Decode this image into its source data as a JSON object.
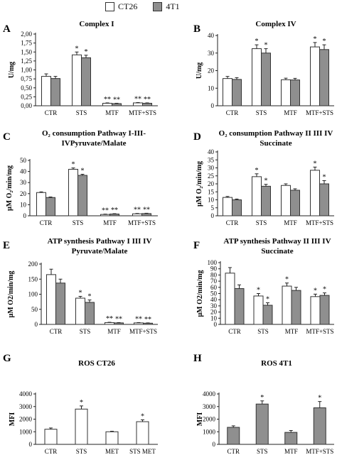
{
  "legend": [
    {
      "label": "CT26",
      "color": "#ffffff"
    },
    {
      "label": "4T1",
      "color": "#8f8f8f"
    }
  ],
  "chart_data": [
    {
      "id": "A",
      "type": "bar",
      "title_lines": [
        "Complex I"
      ],
      "ylabel": "U/mg",
      "categories": [
        "CTR",
        "STS",
        "MTF",
        "MTF+STS"
      ],
      "ylim": [
        0,
        2.0
      ],
      "yticks": [
        "0,00",
        "0,25",
        "0,50",
        "0,75",
        "1,00",
        "1,25",
        "1,50",
        "1,75",
        "2,00"
      ],
      "series": [
        {
          "name": "CT26",
          "color": "#ffffff",
          "values": [
            0.82,
            1.42,
            0.07,
            0.08
          ],
          "errors": [
            0.07,
            0.08,
            0.01,
            0.01
          ]
        },
        {
          "name": "4T1",
          "color": "#8f8f8f",
          "values": [
            0.76,
            1.34,
            0.06,
            0.07
          ],
          "errors": [
            0.06,
            0.07,
            0.01,
            0.01
          ]
        }
      ],
      "annotations": [
        [
          "",
          ""
        ],
        [
          "*",
          "*"
        ],
        [
          "**",
          "**"
        ],
        [
          "**",
          "**"
        ]
      ]
    },
    {
      "id": "B",
      "type": "bar",
      "title_lines": [
        "Complex IV"
      ],
      "ylabel": "U/mg",
      "categories": [
        "CTR",
        "STS",
        "MTF",
        "MTF+STS"
      ],
      "ylim": [
        0,
        40
      ],
      "yticks": [
        "0",
        "10",
        "20",
        "30",
        "40"
      ],
      "series": [
        {
          "name": "CT26",
          "color": "#ffffff",
          "values": [
            15.5,
            32.5,
            14.8,
            33.5
          ],
          "errors": [
            1.2,
            2.2,
            0.9,
            2.5
          ]
        },
        {
          "name": "4T1",
          "color": "#8f8f8f",
          "values": [
            15.0,
            30.0,
            14.7,
            32.0
          ],
          "errors": [
            1.0,
            2.5,
            0.9,
            2.7
          ]
        }
      ],
      "annotations": [
        [
          "",
          ""
        ],
        [
          "*",
          "*"
        ],
        [
          "",
          ""
        ],
        [
          "*",
          "*"
        ]
      ]
    },
    {
      "id": "C",
      "type": "bar",
      "title_lines": [
        "O₂ consumption Pathway I-III-",
        "IVPyruvate/Malate"
      ],
      "ylabel": "μM O₂/min/mg",
      "categories": [
        "CTR",
        "STS",
        "MTF",
        "MTF+STS"
      ],
      "ylim": [
        0,
        50
      ],
      "yticks": [
        "0",
        "10",
        "20",
        "30",
        "40",
        "50"
      ],
      "series": [
        {
          "name": "CT26",
          "color": "#ffffff",
          "values": [
            21,
            42,
            1.2,
            1.8
          ],
          "errors": [
            0.6,
            1.2,
            0.3,
            0.3
          ]
        },
        {
          "name": "4T1",
          "color": "#8f8f8f",
          "values": [
            16.5,
            36.5,
            1.6,
            2.0
          ],
          "errors": [
            0.5,
            1.0,
            0.3,
            0.3
          ]
        }
      ],
      "annotations": [
        [
          "",
          ""
        ],
        [
          "*",
          "*"
        ],
        [
          "**",
          "**"
        ],
        [
          "**",
          "**"
        ]
      ]
    },
    {
      "id": "D",
      "type": "bar",
      "title_lines": [
        "O₂ consumption Pathway II III IV",
        "Succinate"
      ],
      "ylabel": "μM O₂/min/mg",
      "categories": [
        "CTR",
        "STS",
        "MTF",
        "MTF+STS"
      ],
      "ylim": [
        0,
        40
      ],
      "yticks": [
        "0",
        "5",
        "10",
        "15",
        "20",
        "25",
        "30",
        "35",
        "40"
      ],
      "series": [
        {
          "name": "CT26",
          "color": "#ffffff",
          "values": [
            11.5,
            24.5,
            19.0,
            28.5
          ],
          "errors": [
            0.6,
            1.8,
            1.0,
            2.0
          ]
        },
        {
          "name": "4T1",
          "color": "#8f8f8f",
          "values": [
            10.0,
            18.5,
            16.0,
            20.0
          ],
          "errors": [
            0.5,
            1.2,
            0.9,
            2.0
          ]
        }
      ],
      "annotations": [
        [
          "",
          ""
        ],
        [
          "*",
          "*"
        ],
        [
          "",
          ""
        ],
        [
          "*",
          "*"
        ]
      ]
    },
    {
      "id": "E",
      "type": "bar",
      "title_lines": [
        "ATP synthesis Pathway I III IV",
        "Pyruvate/Malate"
      ],
      "ylabel": "μM O2/min/mg",
      "categories": [
        "CTR",
        "STS",
        "MTF",
        "MTF+STS"
      ],
      "ylim": [
        0,
        200
      ],
      "yticks": [
        "0",
        "50",
        "100",
        "150",
        "200"
      ],
      "series": [
        {
          "name": "CT26",
          "color": "#ffffff",
          "values": [
            165,
            87,
            6,
            5
          ],
          "errors": [
            18,
            6,
            1,
            1
          ]
        },
        {
          "name": "4T1",
          "color": "#8f8f8f",
          "values": [
            137,
            73,
            5,
            4
          ],
          "errors": [
            13,
            8,
            1,
            1
          ]
        }
      ],
      "annotations": [
        [
          "",
          ""
        ],
        [
          "*",
          "*"
        ],
        [
          "**",
          "**"
        ],
        [
          "**",
          "**"
        ]
      ]
    },
    {
      "id": "F",
      "type": "bar",
      "title_lines": [
        "ATP synthesis Pathway II III IV",
        "Succinate"
      ],
      "ylabel": "μM O2/min/mg",
      "categories": [
        "CTR",
        "STS",
        "MTF",
        "MTF+STS"
      ],
      "ylim": [
        0,
        100
      ],
      "yticks": [
        "0",
        "10",
        "20",
        "30",
        "40",
        "50",
        "60",
        "70",
        "80",
        "90",
        "100"
      ],
      "series": [
        {
          "name": "CT26",
          "color": "#ffffff",
          "values": [
            83,
            46,
            62,
            45
          ],
          "errors": [
            9,
            4,
            5,
            4
          ]
        },
        {
          "name": "4T1",
          "color": "#8f8f8f",
          "values": [
            58,
            31,
            55,
            47
          ],
          "errors": [
            6,
            4,
            5,
            4
          ]
        }
      ],
      "annotations": [
        [
          "",
          ""
        ],
        [
          "*",
          "*"
        ],
        [
          "*",
          ""
        ],
        [
          "*",
          "*"
        ]
      ]
    },
    {
      "id": "G",
      "type": "bar",
      "title_lines": [
        "ROS CT26"
      ],
      "ylabel": "MFI",
      "categories": [
        "CTR",
        "STS",
        "MET",
        "STS MET"
      ],
      "ylim": [
        0,
        4000
      ],
      "yticks": [
        "0",
        "1000",
        "2000",
        "3000",
        "4000"
      ],
      "series": [
        {
          "name": "CT26",
          "color": "#ffffff",
          "values": [
            1200,
            2800,
            1000,
            1800
          ],
          "errors": [
            100,
            250,
            40,
            150
          ]
        }
      ],
      "annotations": [
        [
          ""
        ],
        [
          "*"
        ],
        [
          ""
        ],
        [
          "*"
        ]
      ]
    },
    {
      "id": "H",
      "type": "bar",
      "title_lines": [
        "ROS 4T1"
      ],
      "ylabel": "MFI",
      "categories": [
        "CTR",
        "STS",
        "MTF",
        "MTF+STS"
      ],
      "ylim": [
        0,
        4000
      ],
      "yticks": [
        "0",
        "1000",
        "2000",
        "3000",
        "4000"
      ],
      "series": [
        {
          "name": "4T1",
          "color": "#8f8f8f",
          "values": [
            1350,
            3200,
            950,
            2900
          ],
          "errors": [
            120,
            250,
            150,
            500
          ]
        }
      ],
      "annotations": [
        [
          ""
        ],
        [
          "*"
        ],
        [
          ""
        ],
        [
          "*"
        ]
      ]
    }
  ]
}
